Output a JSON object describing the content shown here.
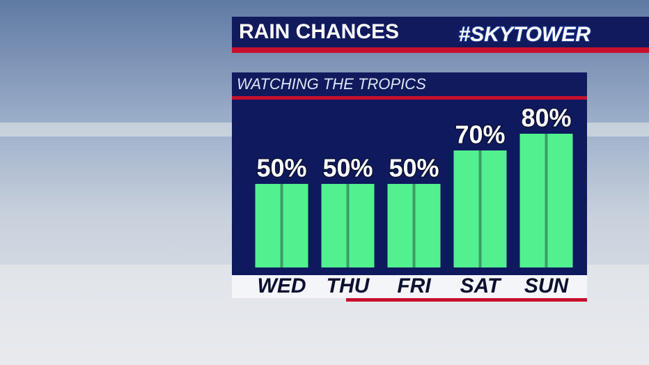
{
  "chart_data": {
    "type": "bar",
    "title": "RAIN CHANCES",
    "logo": "#SKYTOWER",
    "subtitle": "WATCHING THE TROPICS",
    "categories": [
      "WED",
      "THU",
      "FRI",
      "SAT",
      "SUN"
    ],
    "values": [
      50,
      50,
      50,
      70,
      80
    ],
    "value_labels": [
      "50%",
      "50%",
      "50%",
      "70%",
      "80%"
    ],
    "color": "#52f08f"
  }
}
